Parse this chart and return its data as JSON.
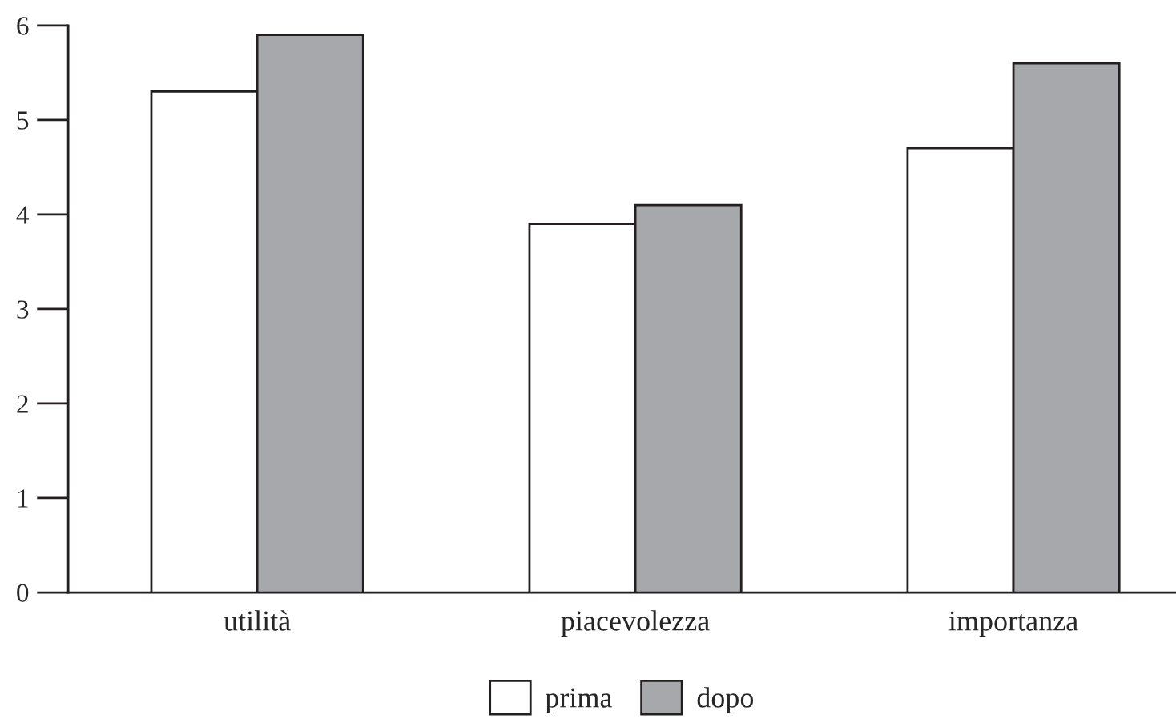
{
  "chart_data": {
    "type": "bar",
    "categories": [
      "utilità",
      "piacevolezza",
      "importanza"
    ],
    "series": [
      {
        "name": "prima",
        "color": "#ffffff",
        "values": [
          5.3,
          3.9,
          4.7
        ]
      },
      {
        "name": "dopo",
        "color": "#a7a8ab",
        "values": [
          5.9,
          4.1,
          5.6
        ]
      }
    ],
    "ylim": [
      0,
      6
    ],
    "yticks": [
      0,
      1,
      2,
      3,
      4,
      5,
      6
    ],
    "grid": false,
    "legend": "bottom"
  }
}
